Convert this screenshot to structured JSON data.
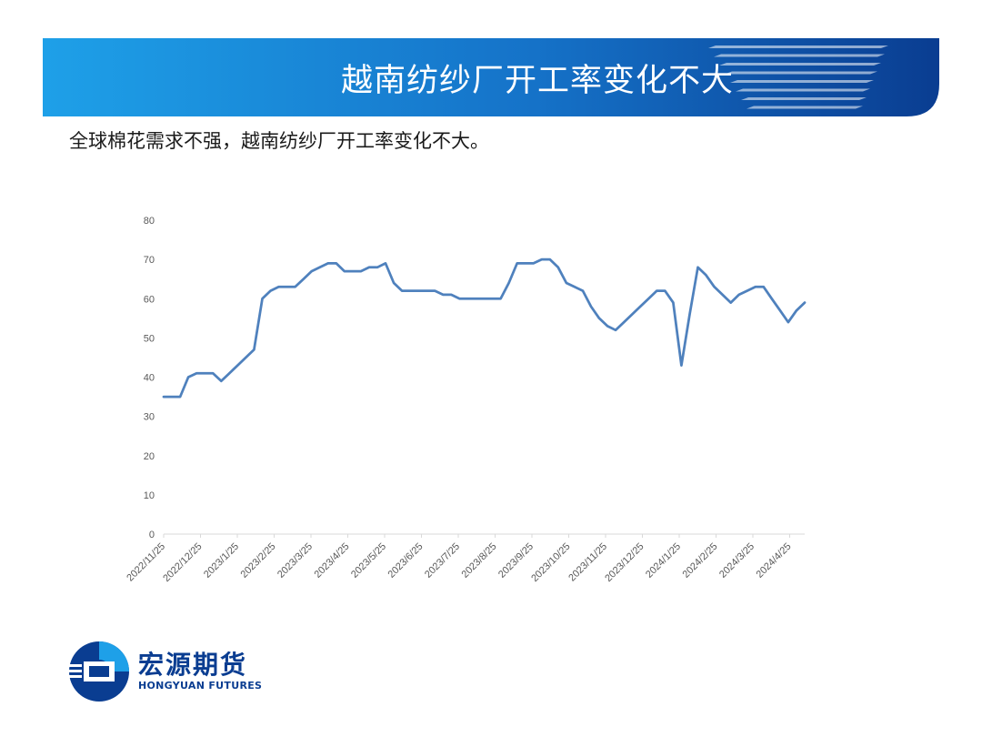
{
  "header": {
    "title": "越南纺纱厂开工率变化不大",
    "colors": {
      "left": "#1ea0e8",
      "right": "#0a3d91",
      "stripe": "#ffffff"
    }
  },
  "subtitle": "全球棉花需求不强，越南纺纱厂开工率变化不大。",
  "logo": {
    "icon": "hongyuan-logo-icon",
    "name_cn": "宏源期货",
    "name_en": "HONGYUAN FUTURES",
    "color": "#0a3d91"
  },
  "chart_data": {
    "type": "line",
    "title": "",
    "xlabel": "",
    "ylabel": "",
    "ylim": [
      0,
      80
    ],
    "yticks": [
      0,
      10,
      20,
      30,
      40,
      50,
      60,
      70,
      80
    ],
    "grid": false,
    "legend": "none",
    "line_color": "#4f81bd",
    "x_tick_labels": [
      "2022/11/25",
      "2022/12/25",
      "2023/1/25",
      "2023/2/25",
      "2023/3/25",
      "2023/4/25",
      "2023/5/25",
      "2023/6/25",
      "2023/7/25",
      "2023/8/25",
      "2023/9/25",
      "2023/10/25",
      "2023/11/25",
      "2023/12/25",
      "2024/1/25",
      "2024/2/25",
      "2024/3/25",
      "2024/4/25"
    ],
    "series": [
      {
        "values": [
          35,
          35,
          35,
          40,
          41,
          41,
          41,
          39,
          41,
          43,
          45,
          47,
          60,
          62,
          63,
          63,
          63,
          65,
          67,
          68,
          69,
          69,
          67,
          67,
          67,
          68,
          68,
          69,
          64,
          62,
          62,
          62,
          62,
          62,
          61,
          61,
          60,
          60,
          60,
          60,
          60,
          60,
          64,
          69,
          69,
          69,
          70,
          70,
          68,
          64,
          63,
          62,
          58,
          55,
          53,
          52,
          54,
          56,
          58,
          60,
          62,
          62,
          59,
          43,
          56,
          68,
          66,
          63,
          61,
          59,
          61,
          62,
          63,
          63,
          60,
          57,
          54,
          57,
          59
        ]
      }
    ]
  }
}
